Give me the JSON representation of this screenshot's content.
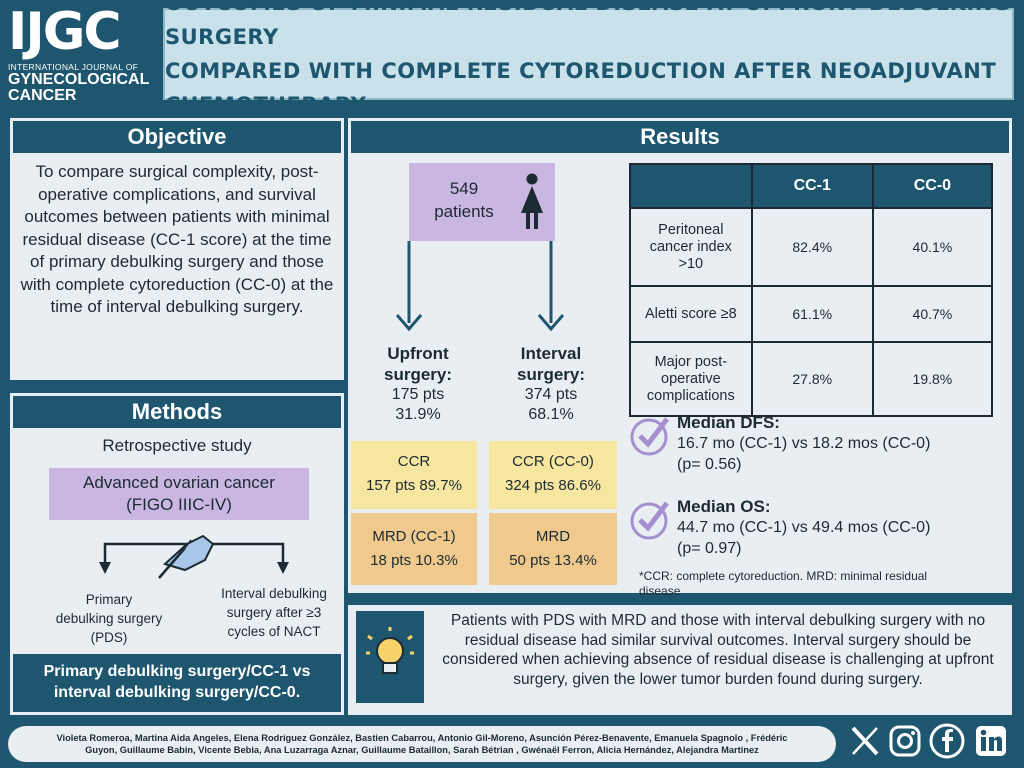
{
  "logo": {
    "mark": "IJGC",
    "line1": "INTERNATIONAL JOURNAL OF",
    "line2": "GYNECOLOGICAL",
    "line3": "CANCER"
  },
  "title": {
    "line1": "OUTCOMES OF MINIMAL RESIDUAL DISEASE AT UPFRONT DEBULKING SURGERY",
    "line2": "COMPARED WITH COMPLETE CYTOREDUCTION AFTER NEOADJUVANT CHEMOTHERAPY"
  },
  "objective": {
    "heading": "Objective",
    "text": "To compare surgical complexity, post-operative complications, and survival outcomes between patients with minimal residual disease (CC-1 score) at the time of primary debulking surgery and those with complete cytoreduction (CC-0) at the time of interval debulking surgery."
  },
  "methods": {
    "heading": "Methods",
    "study": "Retrospective study",
    "cancer_line1": "Advanced ovarian cancer",
    "cancer_line2": "(FIGO IIIC-IV)",
    "left_line1": "Primary",
    "left_line2": "debulking surgery",
    "left_line3": "(PDS)",
    "right_line1": "Interval debulking",
    "right_line2": "surgery after ≥3",
    "right_line3": "cycles of NACT",
    "conclusion_line1": "Primary debulking surgery/CC-1 vs",
    "conclusion_line2": "interval debulking surgery/CC-0."
  },
  "results": {
    "heading": "Results",
    "patients_count": "549",
    "patients_label": "patients",
    "upfront": {
      "title1": "Upfront",
      "title2": "surgery:",
      "pts": "175 pts",
      "pct": "31.9%",
      "ccr_label": "CCR",
      "ccr_value": "157 pts 89.7%",
      "mrd_label": "MRD (CC-1)",
      "mrd_value": "18 pts 10.3%"
    },
    "interval": {
      "title1": "Interval",
      "title2": "surgery:",
      "pts": "374 pts",
      "pct": "68.1%",
      "ccr_label": "CCR (CC-0)",
      "ccr_value": "324 pts 86.6%",
      "mrd_label": "MRD",
      "mrd_value": "50 pts 13.4%"
    },
    "table": {
      "col1": "CC-1",
      "col2": "CC-0",
      "rows": [
        {
          "label1": "Peritoneal",
          "label2": "cancer index",
          "label3": ">10",
          "cc1": "82.4%",
          "cc0": "40.1%"
        },
        {
          "label1": "Aletti score ≥8",
          "label2": "",
          "label3": "",
          "cc1": "61.1%",
          "cc0": "40.7%"
        },
        {
          "label1": "Major post-",
          "label2": "operative",
          "label3": "complications",
          "cc1": "27.8%",
          "cc0": "19.8%"
        }
      ]
    },
    "dfs": {
      "title": "Median DFS:",
      "line1": "16.7 mo (CC-1) vs 18.2 mos (CC-0)",
      "line2": "(p= 0.56)"
    },
    "os": {
      "title": "Median OS:",
      "line1": "44.7 mo (CC-1) vs 49.4 mos (CC-0)",
      "line2": "(p= 0.97)"
    },
    "footnote_line1": "*CCR: complete cytoreduction. MRD: minimal residual",
    "footnote_line2": "disease"
  },
  "conclusion": {
    "text": "Patients with PDS with MRD and those with interval debulking surgery with no residual disease had similar survival outcomes. Interval surgery should be considered when achieving absence of residual disease is challenging at upfront surgery, given the lower tumor burden found during surgery."
  },
  "authors": {
    "line1": "Violeta Romeroa, Martina Aida Angeles, Elena Rodríguez González, Bastien Cabarrou, Antonio Gil-Moreno, Asunción Pérez-Benavente, Emanuela Spagnolo , Frédéric",
    "line2": "Guyon, Guillaume Babin, Vicente Bebia, Ana Luzarraga Aznar, Guillaume Bataillon, Sarah Bétrian , Gwénaël Ferron, Alicia Hernández, Alejandra Martinez"
  },
  "icons": [
    "x-icon",
    "instagram-icon",
    "facebook-icon",
    "linkedin-icon",
    "woman-icon",
    "check-icon",
    "lightbulb-icon",
    "surgeon-hand-icon"
  ],
  "colors": {
    "background": "#1d566e",
    "panel": "#e8eef1",
    "title_box": "#c9e1ea",
    "lavender": "#c9b6e1",
    "yellow": "#f7e6a0",
    "orange": "#f0c98d"
  }
}
